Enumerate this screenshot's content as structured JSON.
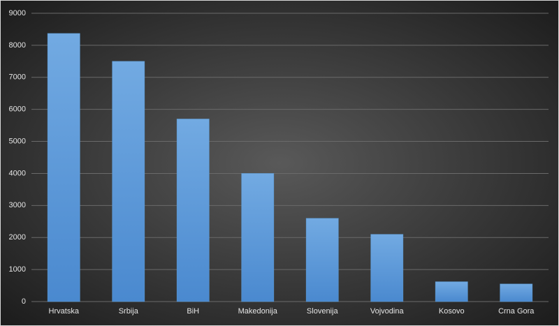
{
  "chart_data": {
    "type": "bar",
    "categories": [
      "Hrvatska",
      "Srbija",
      "BiH",
      "Makedonija",
      "Slovenija",
      "Vojvodina",
      "Kosovo",
      "Crna Gora"
    ],
    "values": [
      8370,
      7500,
      5700,
      4000,
      2600,
      2100,
      620,
      550
    ],
    "color": "#5b9bd5",
    "ylim": [
      0,
      9000
    ],
    "yticks": [
      0,
      1000,
      2000,
      3000,
      4000,
      5000,
      6000,
      7000,
      8000,
      9000
    ],
    "grid": true
  }
}
